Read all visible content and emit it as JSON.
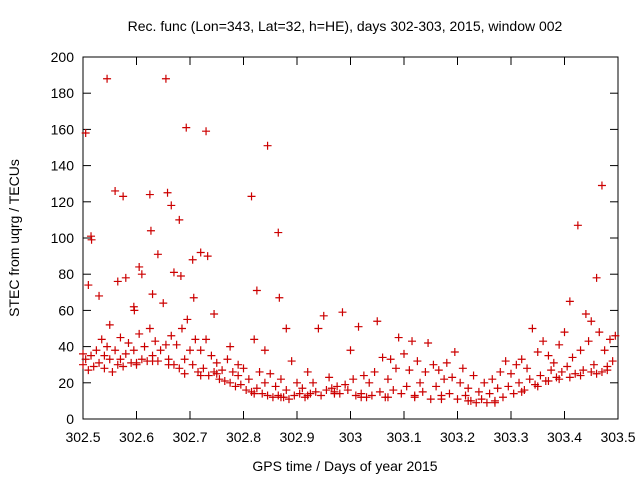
{
  "chart_data": {
    "type": "scatter",
    "title": "Rec. func (Lon=343, Lat=32, h=HE), days 302-303, 2015, window 002",
    "xlabel": "GPS time / Days of year 2015",
    "ylabel": "STEC from uqrg / TECUs",
    "xlim": [
      302.5,
      303.5
    ],
    "ylim": [
      0,
      200
    ],
    "x_ticks": [
      302.5,
      302.6,
      302.7,
      302.8,
      302.9,
      303.0,
      303.1,
      303.2,
      303.3,
      303.4,
      303.5
    ],
    "x_tick_labels": [
      "302.5",
      "302.6",
      "302.7",
      "302.8",
      "302.9",
      "303",
      "303.1",
      "303.2",
      "303.3",
      "303.4",
      "303.5"
    ],
    "y_ticks": [
      0,
      20,
      40,
      60,
      80,
      100,
      120,
      140,
      160,
      180,
      200
    ],
    "y_tick_labels": [
      "0",
      "20",
      "40",
      "60",
      "80",
      "100",
      "120",
      "140",
      "160",
      "180",
      "200"
    ],
    "grid": false,
    "marker": "+",
    "marker_color": "#cc0000",
    "series": [
      {
        "name": "STEC",
        "points": [
          [
            302.505,
            158
          ],
          [
            302.51,
            74
          ],
          [
            302.515,
            101
          ],
          [
            302.516,
            99
          ],
          [
            302.53,
            68
          ],
          [
            302.545,
            188
          ],
          [
            302.56,
            126
          ],
          [
            302.565,
            76
          ],
          [
            302.575,
            123
          ],
          [
            302.58,
            78
          ],
          [
            302.595,
            62
          ],
          [
            302.596,
            60
          ],
          [
            302.605,
            84
          ],
          [
            302.61,
            80
          ],
          [
            302.625,
            124
          ],
          [
            302.627,
            104
          ],
          [
            302.63,
            69
          ],
          [
            302.64,
            91
          ],
          [
            302.655,
            188
          ],
          [
            302.658,
            125
          ],
          [
            302.665,
            118
          ],
          [
            302.67,
            81
          ],
          [
            302.68,
            110
          ],
          [
            302.683,
            79
          ],
          [
            302.693,
            161
          ],
          [
            302.705,
            88
          ],
          [
            302.707,
            67
          ],
          [
            302.72,
            92
          ],
          [
            302.73,
            159
          ],
          [
            302.733,
            90
          ],
          [
            302.745,
            58
          ],
          [
            302.815,
            123
          ],
          [
            302.825,
            71
          ],
          [
            302.845,
            151
          ],
          [
            302.865,
            103
          ],
          [
            302.867,
            67
          ],
          [
            302.88,
            50
          ],
          [
            302.775,
            40
          ],
          [
            302.79,
            30
          ],
          [
            302.84,
            38
          ],
          [
            302.5,
            36
          ],
          [
            302.5,
            30
          ],
          [
            302.505,
            33
          ],
          [
            302.51,
            27
          ],
          [
            302.515,
            35
          ],
          [
            302.52,
            29
          ],
          [
            302.525,
            38
          ],
          [
            302.53,
            31
          ],
          [
            302.535,
            44
          ],
          [
            302.54,
            28
          ],
          [
            302.545,
            40
          ],
          [
            302.55,
            33
          ],
          [
            302.55,
            52
          ],
          [
            302.555,
            26
          ],
          [
            302.56,
            38
          ],
          [
            302.565,
            30
          ],
          [
            302.57,
            45
          ],
          [
            302.575,
            29
          ],
          [
            302.58,
            36
          ],
          [
            302.585,
            42
          ],
          [
            302.59,
            31
          ],
          [
            302.595,
            38
          ],
          [
            302.6,
            30
          ],
          [
            302.605,
            47
          ],
          [
            302.61,
            33
          ],
          [
            302.615,
            40
          ],
          [
            302.62,
            32
          ],
          [
            302.625,
            50
          ],
          [
            302.63,
            35
          ],
          [
            302.635,
            43
          ],
          [
            302.64,
            32
          ],
          [
            302.645,
            38
          ],
          [
            302.65,
            64
          ],
          [
            302.655,
            41
          ],
          [
            302.66,
            33
          ],
          [
            302.665,
            46
          ],
          [
            302.67,
            30
          ],
          [
            302.675,
            41
          ],
          [
            302.68,
            28
          ],
          [
            302.685,
            50
          ],
          [
            302.69,
            33
          ],
          [
            302.695,
            55
          ],
          [
            302.7,
            38
          ],
          [
            302.705,
            30
          ],
          [
            302.71,
            44
          ],
          [
            302.715,
            26
          ],
          [
            302.72,
            38
          ],
          [
            302.725,
            28
          ],
          [
            302.73,
            44
          ],
          [
            302.735,
            24
          ],
          [
            302.74,
            35
          ],
          [
            302.745,
            26
          ],
          [
            302.75,
            31
          ],
          [
            302.755,
            22
          ],
          [
            302.76,
            27
          ],
          [
            302.765,
            21
          ],
          [
            302.77,
            33
          ],
          [
            302.775,
            20
          ],
          [
            302.78,
            26
          ],
          [
            302.785,
            18
          ],
          [
            302.79,
            24
          ],
          [
            302.795,
            19
          ],
          [
            302.8,
            28
          ],
          [
            302.805,
            16
          ],
          [
            302.81,
            22
          ],
          [
            302.815,
            15
          ],
          [
            302.82,
            44
          ],
          [
            302.825,
            17
          ],
          [
            302.83,
            26
          ],
          [
            302.835,
            14
          ],
          [
            302.84,
            20
          ],
          [
            302.845,
            13
          ],
          [
            302.85,
            25
          ],
          [
            302.855,
            12
          ],
          [
            302.86,
            18
          ],
          [
            302.865,
            13
          ],
          [
            302.87,
            22
          ],
          [
            302.875,
            12
          ],
          [
            302.88,
            16
          ],
          [
            302.885,
            11
          ],
          [
            302.89,
            32
          ],
          [
            302.895,
            13
          ],
          [
            302.9,
            20
          ],
          [
            302.905,
            14
          ],
          [
            302.91,
            17
          ],
          [
            302.915,
            12
          ],
          [
            302.92,
            26
          ],
          [
            302.925,
            14
          ],
          [
            302.93,
            20
          ],
          [
            302.935,
            15
          ],
          [
            302.94,
            50
          ],
          [
            302.945,
            13
          ],
          [
            302.95,
            57
          ],
          [
            302.955,
            16
          ],
          [
            302.96,
            23
          ],
          [
            302.965,
            17
          ],
          [
            302.97,
            15
          ],
          [
            302.975,
            18
          ],
          [
            302.98,
            14
          ],
          [
            302.985,
            59
          ],
          [
            302.99,
            19
          ],
          [
            302.995,
            16
          ],
          [
            303.0,
            38
          ],
          [
            303.005,
            22
          ],
          [
            303.01,
            13
          ],
          [
            303.015,
            51
          ],
          [
            303.02,
            14
          ],
          [
            303.025,
            24
          ],
          [
            303.03,
            12
          ],
          [
            303.035,
            20
          ],
          [
            303.04,
            13
          ],
          [
            303.045,
            26
          ],
          [
            303.05,
            54
          ],
          [
            303.055,
            15
          ],
          [
            303.06,
            34
          ],
          [
            303.065,
            12
          ],
          [
            303.07,
            22
          ],
          [
            303.075,
            33
          ],
          [
            303.08,
            16
          ],
          [
            303.085,
            28
          ],
          [
            303.09,
            45
          ],
          [
            303.095,
            14
          ],
          [
            303.1,
            36
          ],
          [
            303.105,
            18
          ],
          [
            303.11,
            27
          ],
          [
            303.115,
            43
          ],
          [
            303.12,
            13
          ],
          [
            303.125,
            32
          ],
          [
            303.13,
            20
          ],
          [
            303.135,
            15
          ],
          [
            303.14,
            26
          ],
          [
            303.145,
            42
          ],
          [
            303.15,
            11
          ],
          [
            303.155,
            30
          ],
          [
            303.16,
            18
          ],
          [
            303.165,
            27
          ],
          [
            303.17,
            13
          ],
          [
            303.175,
            22
          ],
          [
            303.18,
            31
          ],
          [
            303.185,
            14
          ],
          [
            303.19,
            23
          ],
          [
            303.195,
            37
          ],
          [
            303.2,
            11
          ],
          [
            303.205,
            20
          ],
          [
            303.21,
            28
          ],
          [
            303.215,
            13
          ],
          [
            303.22,
            17
          ],
          [
            303.225,
            10
          ],
          [
            303.23,
            24
          ],
          [
            303.235,
            9
          ],
          [
            303.24,
            15
          ],
          [
            303.245,
            11
          ],
          [
            303.25,
            20
          ],
          [
            303.255,
            9
          ],
          [
            303.26,
            14
          ],
          [
            303.265,
            22
          ],
          [
            303.27,
            10
          ],
          [
            303.275,
            17
          ],
          [
            303.28,
            26
          ],
          [
            303.285,
            12
          ],
          [
            303.29,
            32
          ],
          [
            303.295,
            18
          ],
          [
            303.3,
            25
          ],
          [
            303.305,
            14
          ],
          [
            303.31,
            30
          ],
          [
            303.315,
            20
          ],
          [
            303.32,
            33
          ],
          [
            303.325,
            16
          ],
          [
            303.33,
            28
          ],
          [
            303.335,
            22
          ],
          [
            303.34,
            50
          ],
          [
            303.345,
            19
          ],
          [
            303.35,
            37
          ],
          [
            303.355,
            24
          ],
          [
            303.36,
            43
          ],
          [
            303.365,
            21
          ],
          [
            303.37,
            35
          ],
          [
            303.375,
            27
          ],
          [
            303.38,
            31
          ],
          [
            303.385,
            23
          ],
          [
            303.39,
            41
          ],
          [
            303.395,
            26
          ],
          [
            303.4,
            48
          ],
          [
            303.405,
            29
          ],
          [
            303.41,
            65
          ],
          [
            303.415,
            34
          ],
          [
            303.42,
            25
          ],
          [
            303.425,
            107
          ],
          [
            303.43,
            38
          ],
          [
            303.435,
            27
          ],
          [
            303.44,
            58
          ],
          [
            303.445,
            43
          ],
          [
            303.45,
            54
          ],
          [
            303.455,
            30
          ],
          [
            303.46,
            78
          ],
          [
            303.465,
            48
          ],
          [
            303.47,
            129
          ],
          [
            303.475,
            38
          ],
          [
            303.48,
            27
          ],
          [
            303.485,
            44
          ],
          [
            303.49,
            32
          ],
          [
            303.495,
            46
          ],
          [
            303.45,
            26
          ],
          [
            303.46,
            25
          ],
          [
            303.47,
            26
          ],
          [
            303.48,
            29
          ],
          [
            303.43,
            24
          ],
          [
            303.41,
            23
          ],
          [
            303.39,
            22
          ],
          [
            303.37,
            21
          ],
          [
            302.75,
            25
          ],
          [
            302.72,
            24
          ],
          [
            302.69,
            25
          ],
          [
            302.66,
            30
          ],
          [
            302.63,
            32
          ],
          [
            302.6,
            31
          ],
          [
            302.57,
            33
          ],
          [
            302.54,
            35
          ],
          [
            302.82,
            14
          ],
          [
            302.87,
            12
          ],
          [
            302.92,
            13
          ],
          [
            302.97,
            14
          ],
          [
            303.02,
            12
          ],
          [
            303.07,
            12
          ],
          [
            303.12,
            12
          ],
          [
            303.17,
            11
          ],
          [
            303.22,
            10
          ],
          [
            303.27,
            9
          ],
          [
            303.32,
            15
          ],
          [
            303.35,
            18
          ]
        ]
      }
    ]
  }
}
